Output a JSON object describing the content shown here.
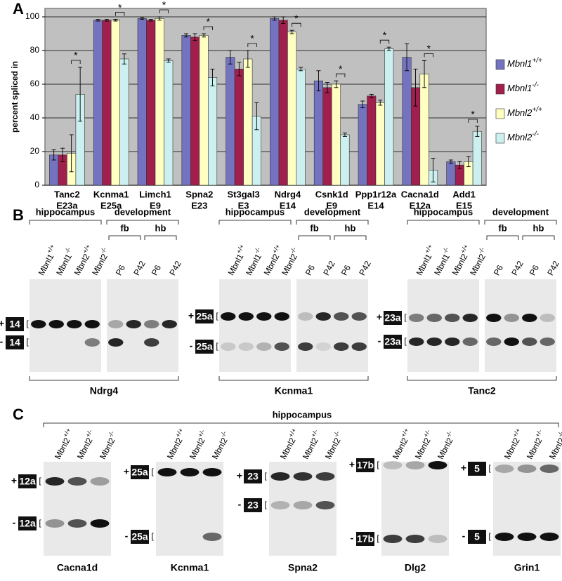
{
  "panels": {
    "a": "A",
    "b": "B",
    "c": "C"
  },
  "chart_data": {
    "type": "bar",
    "ylabel": "percent spliced in",
    "categories": [
      [
        "Tanc2",
        "E23a"
      ],
      [
        "Kcnma1",
        "E25a"
      ],
      [
        "Limch1",
        "E9"
      ],
      [
        "Spna2",
        "E23"
      ],
      [
        "St3gal3",
        "E3"
      ],
      [
        "Ndrg4",
        "E14"
      ],
      [
        "Csnk1d",
        "E9"
      ],
      [
        "Ppp1r12a",
        "E14"
      ],
      [
        "Cacna1d",
        "E12a"
      ],
      [
        "Add1",
        "E15"
      ]
    ],
    "series": [
      {
        "name": "Mbnl1",
        "name_sup": "+/+",
        "color": "#7473c0",
        "values": [
          18,
          98,
          99,
          89,
          76,
          99,
          62,
          48,
          76,
          14
        ],
        "errors": [
          3,
          0.5,
          0.5,
          1,
          4,
          1,
          6,
          2,
          8,
          1
        ]
      },
      {
        "name": "Mbnl1",
        "name_sup": "-/-",
        "color": "#a11f4c",
        "values": [
          18,
          98,
          98,
          88,
          69,
          98,
          58,
          53,
          58,
          12
        ],
        "errors": [
          4,
          0.5,
          0.5,
          2,
          4,
          2,
          3,
          1,
          11,
          2
        ]
      },
      {
        "name": "Mbnl2",
        "name_sup": "+/+",
        "color": "#ffffc2",
        "values": [
          19,
          98,
          99,
          89,
          75,
          91,
          60,
          49,
          66,
          14
        ],
        "errors": [
          11,
          0.5,
          1,
          1,
          5,
          1,
          2,
          1.5,
          8,
          3
        ]
      },
      {
        "name": "Mbnl2",
        "name_sup": "-/-",
        "color": "#ccf0f0",
        "values": [
          54,
          75,
          74,
          64,
          41,
          69,
          30,
          81,
          9,
          32
        ],
        "errors": [
          16,
          3,
          1,
          5,
          8,
          1,
          1,
          1,
          7,
          3
        ]
      }
    ],
    "annotations": [
      "*",
      "*",
      "*",
      "*",
      "*",
      "*",
      "*",
      "*",
      "*",
      "*"
    ],
    "ylim": [
      0,
      105
    ],
    "yticks": [
      0,
      20,
      40,
      60,
      80,
      100
    ],
    "grid": true
  },
  "panel_b": {
    "groups": [
      {
        "gene": "Ndrg4",
        "hippocampus": "hippocampus",
        "development": "development",
        "tissues": [
          "fb",
          "hb"
        ],
        "lanes_hippocampus": [
          {
            "base": "Mbnl1",
            "sup": "+/+"
          },
          {
            "base": "Mbnl1",
            "sup": "-/-"
          },
          {
            "base": "Mbnl2",
            "sup": "+/+"
          },
          {
            "base": "Mbnl2",
            "sup": "-/-"
          }
        ],
        "lanes_development": [
          "P6",
          "P42",
          "P6",
          "P42"
        ],
        "markers": [
          {
            "sign": "+",
            "exon": "14"
          },
          {
            "sign": "-",
            "exon": "14"
          }
        ]
      },
      {
        "gene": "Kcnma1",
        "hippocampus": "hippocampus",
        "development": "development",
        "tissues": [
          "fb",
          "hb"
        ],
        "lanes_hippocampus": [
          {
            "base": "Mbnl1",
            "sup": "+/+"
          },
          {
            "base": "Mbnl1",
            "sup": "-/-"
          },
          {
            "base": "Mbnl2",
            "sup": "+/+"
          },
          {
            "base": "Mbnl2",
            "sup": "-/-"
          }
        ],
        "lanes_development": [
          "P6",
          "P42",
          "P6",
          "P42"
        ],
        "markers": [
          {
            "sign": "+",
            "exon": "25a"
          },
          {
            "sign": "-",
            "exon": "25a"
          }
        ]
      },
      {
        "gene": "Tanc2",
        "hippocampus": "hippocampus",
        "development": "development",
        "tissues": [
          "fb",
          "hb"
        ],
        "lanes_hippocampus": [
          {
            "base": "Mbnl1",
            "sup": "+/+"
          },
          {
            "base": "Mbnl1",
            "sup": "-/-"
          },
          {
            "base": "Mbnl2",
            "sup": "+/+"
          },
          {
            "base": "Mbnl2",
            "sup": "-/-"
          }
        ],
        "lanes_development": [
          "P6",
          "P42",
          "P6",
          "P42"
        ],
        "markers": [
          {
            "sign": "+",
            "exon": "23a"
          },
          {
            "sign": "-",
            "exon": "23a"
          }
        ]
      }
    ]
  },
  "panel_c": {
    "header": "hippocampus",
    "gels": [
      {
        "gene": "Cacna1d",
        "lanes": [
          {
            "base": "Mbnl2",
            "sup": "+/+"
          },
          {
            "base": "Mbnl2",
            "sup": "+/-"
          },
          {
            "base": "Mbnl2",
            "sup": "-/-"
          }
        ],
        "markers": [
          {
            "sign": "+",
            "exon": "12a"
          },
          {
            "sign": "-",
            "exon": "12a"
          }
        ]
      },
      {
        "gene": "Kcnma1",
        "lanes": [
          {
            "base": "Mbnl2",
            "sup": "+/+"
          },
          {
            "base": "Mbnl2",
            "sup": "+/-"
          },
          {
            "base": "Mbnl2",
            "sup": "-/-"
          }
        ],
        "markers": [
          {
            "sign": "+",
            "exon": "25a"
          },
          {
            "sign": "-",
            "exon": "25a"
          }
        ]
      },
      {
        "gene": "Spna2",
        "lanes": [
          {
            "base": "Mbnl2",
            "sup": "+/+"
          },
          {
            "base": "Mbnl2",
            "sup": "+/-"
          },
          {
            "base": "Mbnl2",
            "sup": "-/-"
          }
        ],
        "markers": [
          {
            "sign": "+",
            "exon": "23"
          },
          {
            "sign": "-",
            "exon": "23"
          }
        ]
      },
      {
        "gene": "Dlg2",
        "lanes": [
          {
            "base": "Mbnl2",
            "sup": "+/+"
          },
          {
            "base": "Mbnl2",
            "sup": "+/-"
          },
          {
            "base": "Mbnl2",
            "sup": "-/-"
          }
        ],
        "markers": [
          {
            "sign": "+",
            "exon": "17b"
          },
          {
            "sign": "-",
            "exon": "17b"
          }
        ]
      },
      {
        "gene": "Grin1",
        "lanes": [
          {
            "base": "Mbnl2",
            "sup": "+/+"
          },
          {
            "base": "Mbnl2",
            "sup": "+/-"
          },
          {
            "base": "Mbnl2",
            "sup": "-/-"
          }
        ],
        "markers": [
          {
            "sign": "+",
            "exon": "5"
          },
          {
            "sign": "-",
            "exon": "5"
          }
        ]
      }
    ]
  }
}
